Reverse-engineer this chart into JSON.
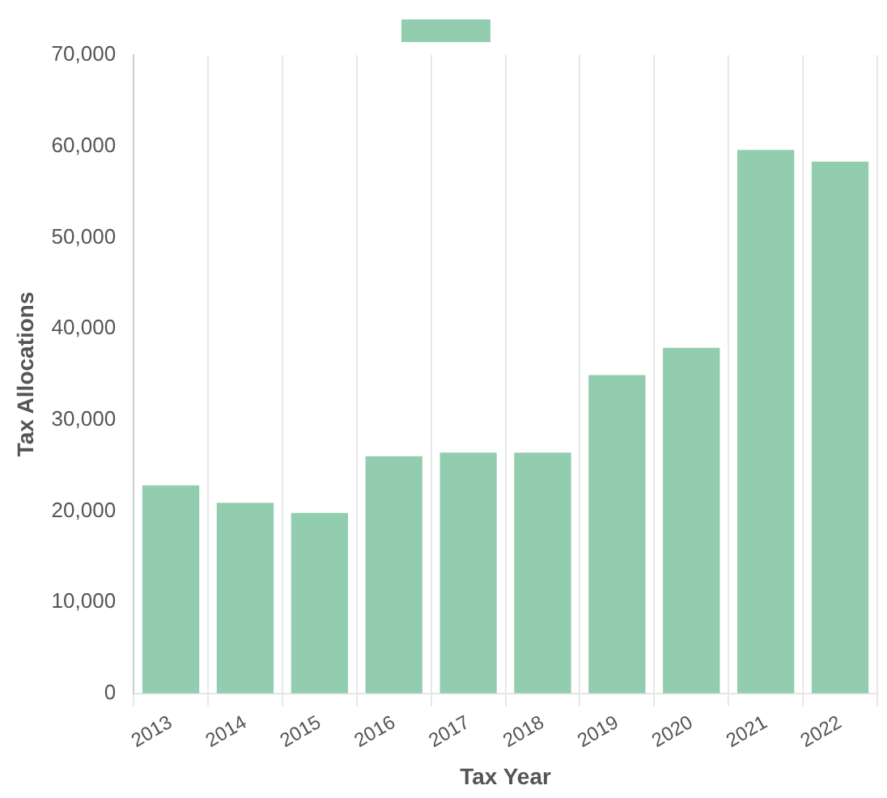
{
  "chart_data": {
    "type": "bar",
    "xlabel": "Tax Year",
    "ylabel": "Tax Allocations",
    "categories": [
      "2013",
      "2014",
      "2015",
      "2016",
      "2017",
      "2018",
      "2019",
      "2020",
      "2021",
      "2022"
    ],
    "values": [
      22800,
      20900,
      19800,
      26000,
      26400,
      26400,
      34900,
      37900,
      59600,
      58300
    ],
    "color": "#93cdb0",
    "ylim": [
      0,
      70000
    ],
    "yticks": [
      0,
      {
        "value": 10000,
        "label": "10,000"
      },
      {
        "value": 20000,
        "label": "20,000"
      },
      {
        "value": 30000,
        "label": "30,000"
      },
      {
        "value": 40000,
        "label": "40,000"
      },
      {
        "value": 50000,
        "label": "50,000"
      },
      {
        "value": 60000,
        "label": "60,000"
      },
      {
        "value": 70000,
        "label": "70,000"
      }
    ],
    "grid": "x"
  }
}
